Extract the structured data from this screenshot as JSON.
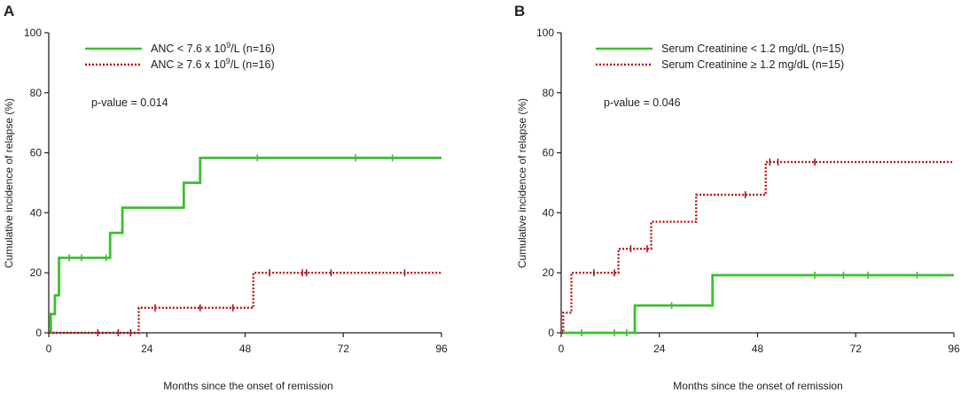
{
  "chart_data": [
    {
      "type": "line",
      "panel": "A",
      "xlabel": "Months since the onset of remission",
      "ylabel": "Cumulative incidence of relapse (%)",
      "xlim": [
        0,
        96
      ],
      "ylim": [
        0,
        100
      ],
      "xticks": [
        0,
        24,
        48,
        72,
        96
      ],
      "yticks": [
        0,
        20,
        40,
        60,
        80,
        100
      ],
      "legend_position": "top-left",
      "annotation": "p-value = 0.014",
      "series": [
        {
          "name_prefix": "ANC < 7.6 x 10",
          "name_exp": "9",
          "name_suffix": "/L (n=16)",
          "color": "#3cbf2f",
          "style": "solid",
          "steps": [
            [
              0,
              0
            ],
            [
              0.5,
              6.25
            ],
            [
              1.5,
              12.5
            ],
            [
              2.5,
              25
            ],
            [
              15,
              33.3
            ],
            [
              18,
              41.7
            ],
            [
              33,
              50
            ],
            [
              37,
              58.3
            ],
            [
              96,
              58.3
            ]
          ],
          "censor_x": [
            5,
            8,
            14,
            51,
            75,
            84
          ]
        },
        {
          "name_prefix": "ANC ≥ 7.6 x 10",
          "name_exp": "9",
          "name_suffix": "/L (n=16)",
          "color": "#b3121b",
          "style": "dotted",
          "steps": [
            [
              0,
              0
            ],
            [
              22,
              8.33
            ],
            [
              50,
              20
            ],
            [
              96,
              20
            ]
          ],
          "censor_x": [
            12,
            17,
            20,
            26,
            37,
            45,
            54,
            62,
            63,
            69,
            87
          ]
        }
      ]
    },
    {
      "type": "line",
      "panel": "B",
      "xlabel": "Months since the onset of remission",
      "ylabel": "Cumulative incidence of relapse (%)",
      "xlim": [
        0,
        96
      ],
      "ylim": [
        0,
        100
      ],
      "xticks": [
        0,
        24,
        48,
        72,
        96
      ],
      "yticks": [
        0,
        20,
        40,
        60,
        80,
        100
      ],
      "legend_position": "top-left",
      "annotation": "p-value = 0.046",
      "series": [
        {
          "name_prefix": "Serum Creatinine < 1.2 mg/dL (n=15)",
          "name_exp": "",
          "name_suffix": "",
          "color": "#3cbf2f",
          "style": "solid",
          "steps": [
            [
              0,
              0
            ],
            [
              18,
              9.1
            ],
            [
              37,
              19.2
            ],
            [
              96,
              19.2
            ]
          ],
          "censor_x": [
            5,
            13,
            16,
            27,
            62,
            69,
            75,
            87
          ]
        },
        {
          "name_prefix": "Serum Creatinine ≥ 1.2 mg/dL (n=15)",
          "name_exp": "",
          "name_suffix": "",
          "color": "#b3121b",
          "style": "dotted",
          "steps": [
            [
              0,
              0
            ],
            [
              0.5,
              6.7
            ],
            [
              2.5,
              20
            ],
            [
              14,
              28
            ],
            [
              22,
              37
            ],
            [
              33,
              46
            ],
            [
              50,
              56.9
            ],
            [
              96,
              56.9
            ]
          ],
          "censor_x": [
            8,
            13,
            17,
            21,
            45,
            51,
            53,
            62
          ]
        }
      ]
    }
  ]
}
